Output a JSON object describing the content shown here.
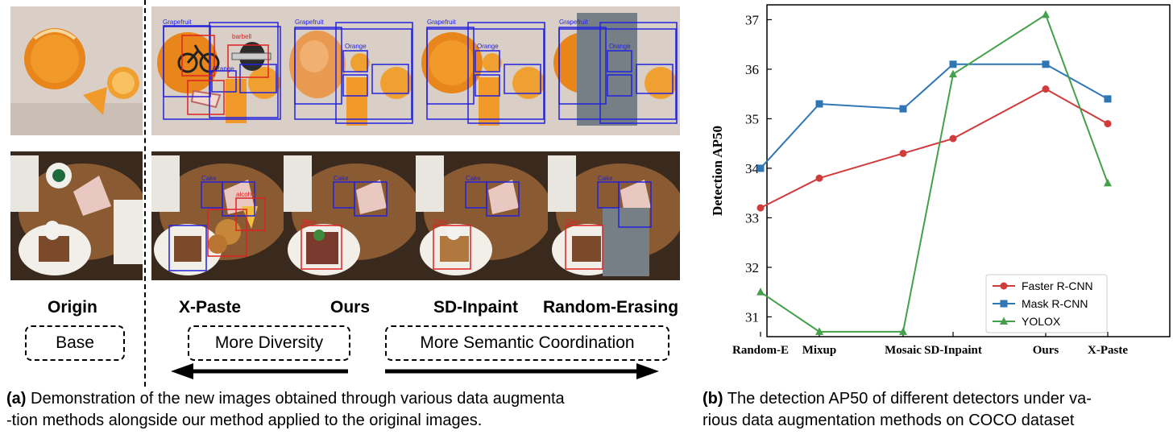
{
  "figure_a": {
    "labels": {
      "origin": "Origin",
      "xpaste": "X-Paste",
      "ours": "Ours",
      "sdinpaint": "SD-Inpaint",
      "random_erasing": "Random-Erasing"
    },
    "boxes": {
      "base": "Base",
      "more_diversity": "More Diversity",
      "more_semantic": "More Semantic Coordination"
    },
    "tile_labels": {
      "grapefruit": "Grapefruit",
      "orange": "Orange",
      "barbell": "barbell",
      "cake": "Cake",
      "alcohol": "alcohol",
      "steak": "Steak"
    },
    "caption_bold": "(a)",
    "caption_line1": " Demonstration of the new images obtained through various data augmenta",
    "caption_line2": "-tion methods alongside our method applied to the original images."
  },
  "figure_b": {
    "caption_bold": "(b)",
    "caption_line1": " The detection AP50 of different detectors under va-",
    "caption_line2": "rious data augmentation methods on COCO dataset"
  },
  "colors": {
    "faster": "#d03b3b",
    "mask": "#2f76b5",
    "yolox": "#45a04a",
    "blue_box": "#2222dd",
    "red_box": "#dd2222",
    "erase": "#777f86"
  },
  "chart_data": {
    "type": "line",
    "categories": [
      "Random-E",
      "Mixup",
      "Mosaic",
      "SD-Inpaint",
      "Ours",
      "X-Paste"
    ],
    "series": [
      {
        "name": "Faster R-CNN",
        "marker": "circle",
        "values": [
          33.2,
          33.8,
          34.3,
          34.6,
          35.6,
          34.9
        ]
      },
      {
        "name": "Mask R-CNN",
        "marker": "square",
        "values": [
          34.0,
          35.3,
          35.2,
          36.1,
          36.1,
          35.4
        ]
      },
      {
        "name": "YOLOX",
        "marker": "triangle",
        "values": [
          31.5,
          30.7,
          30.7,
          35.9,
          37.1,
          33.7
        ]
      }
    ],
    "ylabel": "Detection AP50",
    "xlabel": "",
    "ylim": [
      30.6,
      37.3
    ],
    "yticks": [
      "31",
      "32",
      "33",
      "34",
      "35",
      "36",
      "37"
    ],
    "legend": "lower-right",
    "grid": false
  }
}
